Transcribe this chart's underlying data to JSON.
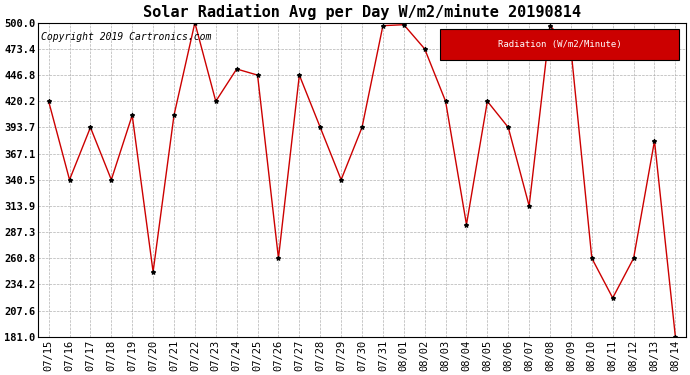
{
  "title": "Solar Radiation Avg per Day W/m2/minute 20190814",
  "copyright_text": "Copyright 2019 Cartronics.com",
  "legend_label": "Radiation (W/m2/Minute)",
  "dates": [
    "07/15",
    "07/16",
    "07/17",
    "07/18",
    "07/19",
    "07/20",
    "07/21",
    "07/22",
    "07/23",
    "07/24",
    "07/25",
    "07/26",
    "07/27",
    "07/28",
    "07/29",
    "07/30",
    "07/31",
    "08/01",
    "08/02",
    "08/03",
    "08/04",
    "08/05",
    "08/06",
    "08/07",
    "08/08",
    "08/09",
    "08/10",
    "08/11",
    "08/12",
    "08/13",
    "08/14"
  ],
  "values": [
    420.2,
    340.5,
    393.7,
    340.5,
    406.0,
    247.0,
    406.0,
    500.0,
    420.2,
    453.0,
    446.8,
    260.8,
    446.8,
    393.7,
    340.5,
    393.7,
    497.0,
    498.0,
    473.4,
    420.2,
    295.0,
    420.2,
    393.7,
    313.9,
    497.0,
    473.4,
    260.8,
    220.5,
    260.8,
    380.0,
    181.0
  ],
  "line_color": "#cc0000",
  "marker_color": "#000000",
  "bg_color": "#ffffff",
  "grid_color": "#aaaaaa",
  "legend_bg": "#cc0000",
  "legend_text_color": "#ffffff",
  "yticks": [
    181.0,
    207.6,
    234.2,
    260.8,
    287.3,
    313.9,
    340.5,
    367.1,
    393.7,
    420.2,
    446.8,
    473.4,
    500.0
  ],
  "title_fontsize": 11,
  "tick_fontsize": 7.5,
  "copyright_fontsize": 7
}
